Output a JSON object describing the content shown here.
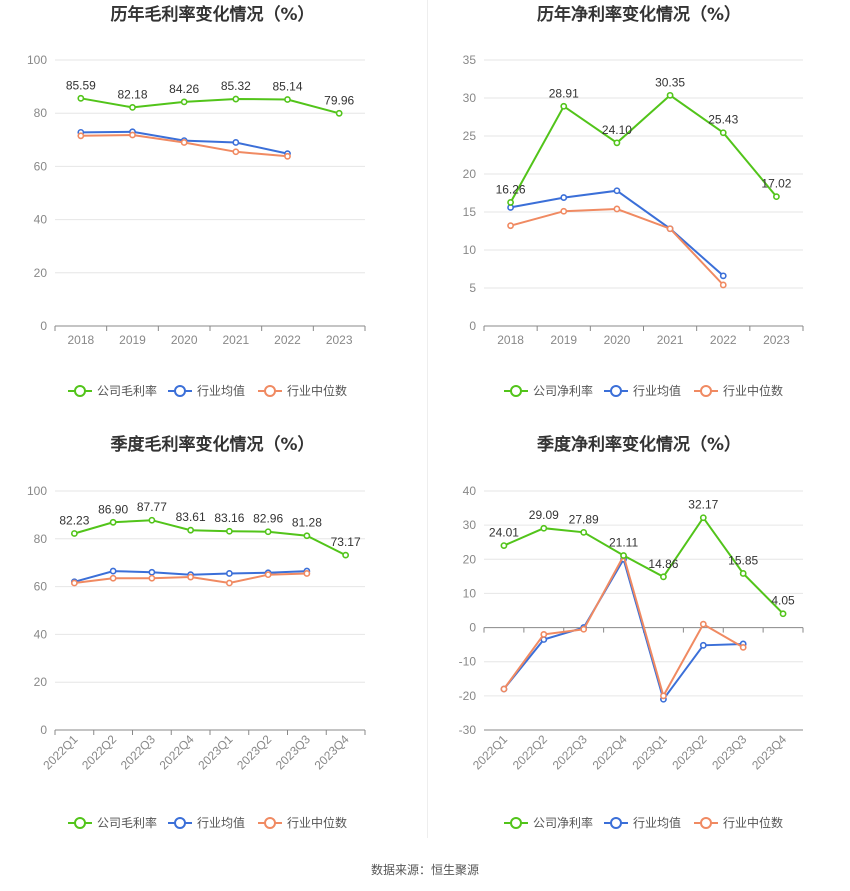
{
  "colors": {
    "company": "#52c41a",
    "avg": "#3b6fd8",
    "median": "#f08a62",
    "grid": "#e6e6e6"
  },
  "legend": {
    "avg": "行业均值",
    "median": "行业中位数"
  },
  "source": "数据来源：恒生聚源",
  "chart_data": [
    {
      "type": "line",
      "title": "历年毛利率变化情况（%）",
      "categories": [
        "2018",
        "2019",
        "2020",
        "2021",
        "2022",
        "2023"
      ],
      "ylim": [
        0,
        100
      ],
      "yticks": [
        0,
        20,
        40,
        60,
        80,
        100
      ],
      "series": [
        {
          "name": "公司毛利率",
          "key": "company",
          "values": [
            85.59,
            82.18,
            84.26,
            85.32,
            85.14,
            79.96
          ],
          "labels": [
            "85.59",
            "82.18",
            "84.26",
            "85.32",
            "85.14",
            "79.96"
          ]
        },
        {
          "name": "行业均值",
          "key": "avg",
          "values": [
            72.8,
            73.0,
            69.7,
            69.0,
            64.8,
            null
          ]
        },
        {
          "name": "行业中位数",
          "key": "median",
          "values": [
            71.5,
            71.8,
            69.0,
            65.5,
            63.8,
            null
          ]
        }
      ]
    },
    {
      "type": "line",
      "title": "历年净利率变化情况（%）",
      "categories": [
        "2018",
        "2019",
        "2020",
        "2021",
        "2022",
        "2023"
      ],
      "ylim": [
        0,
        35
      ],
      "yticks": [
        0,
        5,
        10,
        15,
        20,
        25,
        30,
        35
      ],
      "series": [
        {
          "name": "公司净利率",
          "key": "company",
          "values": [
            16.26,
            28.91,
            24.1,
            30.35,
            25.43,
            17.02
          ],
          "labels": [
            "16.26",
            "28.91",
            "24.10",
            "30.35",
            "25.43",
            "17.02"
          ]
        },
        {
          "name": "行业均值",
          "key": "avg",
          "values": [
            15.6,
            16.9,
            17.8,
            12.8,
            6.6,
            null
          ]
        },
        {
          "name": "行业中位数",
          "key": "median",
          "values": [
            13.2,
            15.1,
            15.4,
            12.8,
            5.4,
            null
          ]
        }
      ]
    },
    {
      "type": "line",
      "title": "季度毛利率变化情况（%）",
      "categories": [
        "2022Q1",
        "2022Q2",
        "2022Q3",
        "2022Q4",
        "2023Q1",
        "2023Q2",
        "2023Q3",
        "2023Q4"
      ],
      "ylim": [
        0,
        100
      ],
      "yticks": [
        0,
        20,
        40,
        60,
        80,
        100
      ],
      "series": [
        {
          "name": "公司毛利率",
          "key": "company",
          "values": [
            82.23,
            86.9,
            87.77,
            83.61,
            83.16,
            82.96,
            81.28,
            73.17
          ],
          "labels": [
            "82.23",
            "86.90",
            "87.77",
            "83.61",
            "83.16",
            "82.96",
            "81.28",
            "73.17"
          ]
        },
        {
          "name": "行业均值",
          "key": "avg",
          "values": [
            62.0,
            66.5,
            66.0,
            65.0,
            65.5,
            65.8,
            66.5,
            null
          ]
        },
        {
          "name": "行业中位数",
          "key": "median",
          "values": [
            61.5,
            63.5,
            63.5,
            64.0,
            61.5,
            65.0,
            65.5,
            null
          ]
        }
      ]
    },
    {
      "type": "line",
      "title": "季度净利率变化情况（%）",
      "categories": [
        "2022Q1",
        "2022Q2",
        "2022Q3",
        "2022Q4",
        "2023Q1",
        "2023Q2",
        "2023Q3",
        "2023Q4"
      ],
      "ylim": [
        -30,
        40
      ],
      "yticks": [
        -30,
        -20,
        -10,
        0,
        10,
        20,
        30,
        40
      ],
      "series": [
        {
          "name": "公司净利率",
          "key": "company",
          "values": [
            24.01,
            29.09,
            27.89,
            21.11,
            14.86,
            32.17,
            15.85,
            4.05
          ],
          "labels": [
            "24.01",
            "29.09",
            "27.89",
            "21.11",
            "14.86",
            "32.17",
            "15.85",
            "4.05"
          ]
        },
        {
          "name": "行业均值",
          "key": "avg",
          "values": [
            -18.0,
            -3.5,
            0.0,
            20.0,
            -21.0,
            -5.2,
            -4.8,
            null
          ]
        },
        {
          "name": "行业中位数",
          "key": "median",
          "values": [
            -18.0,
            -2.0,
            -0.5,
            21.0,
            -20.0,
            1.0,
            -5.8,
            null
          ]
        }
      ]
    }
  ]
}
